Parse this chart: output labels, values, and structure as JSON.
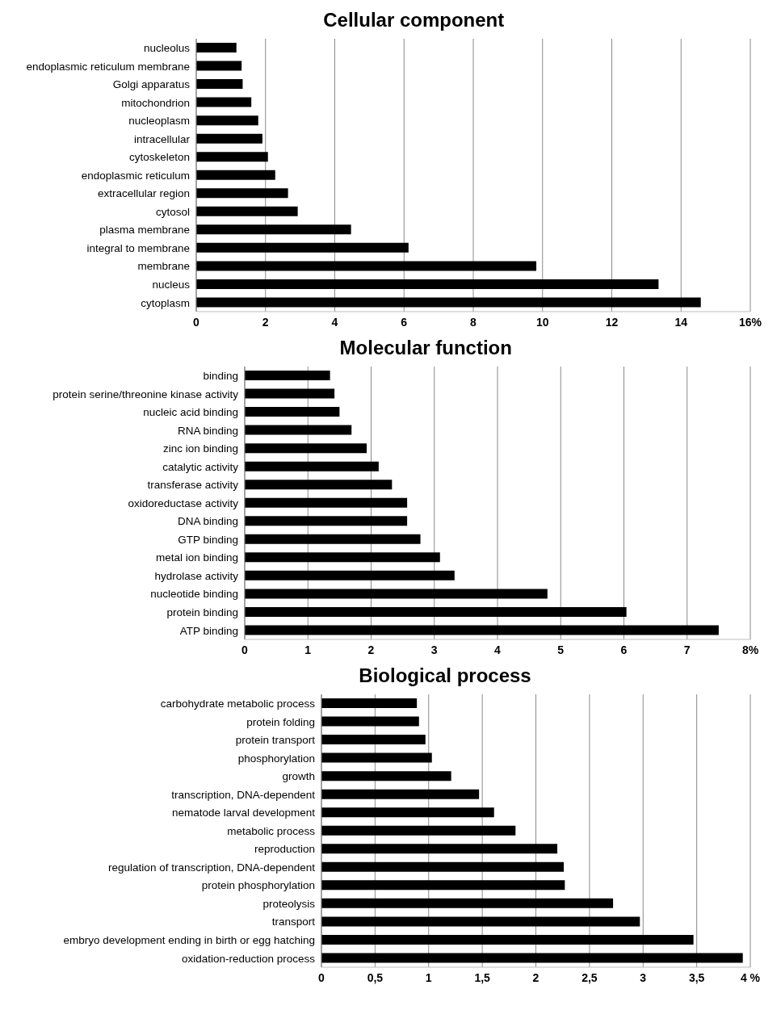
{
  "chart_data": [
    {
      "type": "bar",
      "orientation": "horizontal",
      "title": "Cellular component",
      "categories": [
        "nucleolus",
        "endoplasmic reticulum membrane",
        "Golgi apparatus",
        "mitochondrion",
        "nucleoplasm",
        "intracellular",
        "cytoskeleton",
        "endoplasmic reticulum",
        "extracellular region",
        "cytosol",
        "plasma membrane",
        "integral to membrane",
        "membrane",
        "nucleus",
        "cytoplasm"
      ],
      "values": [
        1.16,
        1.31,
        1.34,
        1.59,
        1.79,
        1.91,
        2.07,
        2.28,
        2.65,
        2.93,
        4.47,
        6.13,
        9.82,
        13.35,
        14.57
      ],
      "color": "#000000",
      "xlim": [
        0,
        16
      ],
      "xticks": [
        0,
        2,
        4,
        6,
        8,
        10,
        12,
        14,
        {
          "value": 16,
          "label": "16%"
        }
      ],
      "grid": "x",
      "legend": false
    },
    {
      "type": "bar",
      "orientation": "horizontal",
      "title": "Molecular function",
      "categories": [
        "binding",
        "protein serine/threonine kinase activity",
        "nucleic acid binding",
        "RNA binding",
        "zinc ion binding",
        "catalytic activity",
        "transferase activity",
        "oxidoreductase activity",
        "DNA binding",
        "GTP binding",
        "metal ion binding",
        "hydrolase activity",
        "nucleotide binding",
        "protein binding",
        "ATP binding"
      ],
      "values": [
        1.35,
        1.42,
        1.5,
        1.69,
        1.93,
        2.12,
        2.33,
        2.57,
        2.57,
        2.78,
        3.09,
        3.32,
        4.79,
        6.04,
        7.5
      ],
      "color": "#000000",
      "xlim": [
        0,
        8
      ],
      "xticks": [
        0,
        1,
        2,
        3,
        4,
        5,
        6,
        7,
        {
          "value": 8,
          "label": "8%"
        }
      ],
      "grid": "x",
      "legend": false
    },
    {
      "type": "bar",
      "orientation": "horizontal",
      "title": "Biological process",
      "categories": [
        "carbohydrate metabolic process",
        "protein folding",
        "protein transport",
        "phosphorylation",
        "growth",
        "transcription, DNA-dependent",
        "nematode larval development",
        "metabolic process",
        "reproduction",
        "regulation of transcription, DNA-dependent",
        "protein phosphorylation",
        "proteolysis",
        "transport",
        "embryo development ending in birth or egg hatching",
        "oxidation-reduction process"
      ],
      "values": [
        0.89,
        0.91,
        0.97,
        1.03,
        1.21,
        1.47,
        1.61,
        1.81,
        2.2,
        2.26,
        2.27,
        2.72,
        2.97,
        3.47,
        3.93
      ],
      "color": "#000000",
      "xlim": [
        0,
        4
      ],
      "xticks": [
        0,
        {
          "value": 0.5,
          "label": "0,5"
        },
        1,
        {
          "value": 1.5,
          "label": "1,5"
        },
        2,
        {
          "value": 2.5,
          "label": "2,5"
        },
        3,
        {
          "value": 3.5,
          "label": "3,5"
        },
        {
          "value": 4,
          "label": "4 %"
        }
      ],
      "grid": "x",
      "legend": false
    }
  ]
}
